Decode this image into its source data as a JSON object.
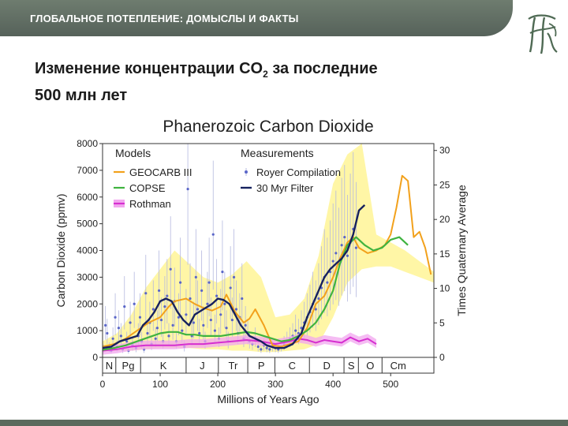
{
  "header": {
    "title": "ГЛОБАЛЬНОЕ ПОТЕПЛЕНИЕ: ДОМЫСЛЫ И ФАКТЫ"
  },
  "logo": {
    "name": "logo-icon"
  },
  "slide": {
    "title_line1_pre": "Изменение концентрации CO",
    "title_sub": "2",
    "title_line1_post": " за последние",
    "title_line2": "500 млн лет"
  },
  "colors": {
    "header": "#5f6c61",
    "geocarb": "#f2a11c",
    "copse": "#3fb33f",
    "rothman": "#d62fd0",
    "rothman_band": "#f2a6ef",
    "filter": "#16215e",
    "royer": "#5a66c8",
    "envelope": "#fff6a6"
  },
  "chart_data": {
    "type": "line",
    "title": "Phanerozoic Carbon Dioxide",
    "xlabel": "Millions of Years Ago",
    "ylabel": "Carbon Dioxide (ppmv)",
    "y2label": "Times Quaternary Average",
    "xlim": [
      0,
      575
    ],
    "ylim": [
      0,
      8000
    ],
    "y2lim": [
      0,
      31
    ],
    "x_ticks": [
      0,
      100,
      200,
      300,
      400,
      500
    ],
    "y_ticks": [
      0,
      1000,
      2000,
      3000,
      4000,
      5000,
      6000,
      7000,
      8000
    ],
    "y2_ticks": [
      0,
      5,
      10,
      15,
      20,
      25,
      30
    ],
    "grid": false,
    "legend_models_title": "Models",
    "legend_measurements_title": "Measurements",
    "periods": [
      {
        "label": "N",
        "start": 0,
        "end": 23
      },
      {
        "label": "Pg",
        "start": 23,
        "end": 66
      },
      {
        "label": "K",
        "start": 66,
        "end": 145
      },
      {
        "label": "J",
        "start": 145,
        "end": 201
      },
      {
        "label": "Tr",
        "start": 201,
        "end": 252
      },
      {
        "label": "P",
        "start": 252,
        "end": 299
      },
      {
        "label": "C",
        "start": 299,
        "end": 359
      },
      {
        "label": "D",
        "start": 359,
        "end": 419
      },
      {
        "label": "S",
        "start": 419,
        "end": 444
      },
      {
        "label": "O",
        "start": 444,
        "end": 485
      },
      {
        "label": "Cm",
        "start": 485,
        "end": 541
      }
    ],
    "envelope": {
      "x": [
        0,
        25,
        50,
        75,
        100,
        125,
        150,
        175,
        200,
        225,
        250,
        275,
        300,
        325,
        350,
        375,
        400,
        425,
        450,
        475,
        500,
        525,
        550,
        575
      ],
      "upper": [
        600,
        900,
        1600,
        2600,
        3300,
        4000,
        3500,
        3000,
        2800,
        3100,
        3600,
        3000,
        1500,
        1600,
        2200,
        3800,
        6500,
        7600,
        8000,
        4600,
        4300,
        4000,
        3600,
        3200
      ],
      "lower": [
        200,
        250,
        250,
        300,
        350,
        350,
        350,
        300,
        300,
        250,
        250,
        200,
        200,
        250,
        300,
        500,
        1500,
        2800,
        3300,
        3400,
        3400,
        3200,
        3000,
        2800
      ]
    },
    "series": [
      {
        "name": "GEOCARB III",
        "kind": "model",
        "x": [
          0,
          20,
          40,
          60,
          80,
          100,
          115,
          125,
          135,
          145,
          160,
          175,
          190,
          205,
          215,
          230,
          245,
          255,
          265,
          280,
          295,
          310,
          325,
          340,
          355,
          370,
          385,
          400,
          412,
          425,
          435,
          445,
          460,
          475,
          490,
          500,
          510,
          520,
          530,
          540,
          550,
          560,
          570
        ],
        "values": [
          400,
          500,
          700,
          1000,
          1300,
          1500,
          1900,
          2100,
          2150,
          2200,
          2000,
          1850,
          1750,
          1900,
          2350,
          1700,
          1300,
          1450,
          1800,
          1200,
          450,
          400,
          500,
          600,
          1100,
          2000,
          2300,
          3000,
          3700,
          4300,
          4500,
          4100,
          3900,
          4000,
          4200,
          4600,
          5600,
          6800,
          6600,
          4500,
          4700,
          4100,
          3100
        ]
      },
      {
        "name": "COPSE",
        "kind": "model",
        "x": [
          0,
          20,
          40,
          60,
          80,
          100,
          115,
          130,
          145,
          160,
          175,
          190,
          205,
          220,
          235,
          250,
          265,
          280,
          295,
          310,
          325,
          340,
          355,
          370,
          385,
          400,
          412,
          425,
          440,
          455,
          470,
          485,
          500,
          515,
          530
        ],
        "values": [
          280,
          350,
          450,
          600,
          750,
          900,
          950,
          950,
          850,
          850,
          800,
          800,
          800,
          850,
          900,
          950,
          900,
          800,
          700,
          600,
          650,
          800,
          1000,
          1300,
          1800,
          2500,
          3500,
          4200,
          4500,
          4200,
          4000,
          4100,
          4400,
          4500,
          4200
        ]
      },
      {
        "name": "Rothman",
        "kind": "model",
        "x": [
          0,
          25,
          50,
          75,
          100,
          125,
          150,
          175,
          200,
          225,
          250,
          275,
          300,
          325,
          340,
          355,
          370,
          385,
          400,
          415,
          430,
          445,
          460,
          475
        ],
        "values": [
          250,
          300,
          400,
          450,
          450,
          450,
          500,
          500,
          550,
          600,
          650,
          600,
          500,
          600,
          700,
          650,
          550,
          650,
          600,
          550,
          750,
          600,
          700,
          500
        ]
      },
      {
        "name": "30 Myr Filter",
        "kind": "measurement",
        "x": [
          0,
          15,
          30,
          45,
          60,
          70,
          80,
          90,
          100,
          110,
          120,
          130,
          140,
          150,
          160,
          175,
          190,
          200,
          210,
          220,
          230,
          240,
          255,
          265,
          275,
          285,
          300,
          315,
          330,
          345,
          355,
          365,
          375,
          385,
          395,
          405,
          415,
          425,
          435,
          445,
          455
        ],
        "values": [
          350,
          400,
          600,
          700,
          800,
          1200,
          1400,
          1700,
          2100,
          2200,
          2100,
          1700,
          1400,
          1200,
          1600,
          1800,
          2000,
          2200,
          2150,
          2000,
          1600,
          1200,
          800,
          700,
          600,
          450,
          350,
          350,
          500,
          900,
          1500,
          2000,
          2500,
          3000,
          3300,
          3500,
          3700,
          4000,
          4600,
          5500,
          5700
        ]
      }
    ],
    "royer_points": {
      "name": "Royer Compilation",
      "x": [
        2,
        5,
        8,
        12,
        15,
        18,
        22,
        25,
        28,
        32,
        35,
        38,
        42,
        45,
        48,
        52,
        55,
        58,
        62,
        65,
        68,
        72,
        75,
        78,
        82,
        85,
        88,
        92,
        95,
        98,
        102,
        105,
        108,
        112,
        115,
        118,
        122,
        125,
        128,
        132,
        135,
        138,
        142,
        145,
        148,
        152,
        155,
        158,
        162,
        165,
        168,
        172,
        175,
        178,
        182,
        185,
        188,
        192,
        195,
        198,
        202,
        205,
        208,
        212,
        215,
        218,
        222,
        225,
        228,
        232,
        235,
        238,
        242,
        245,
        248,
        252,
        255,
        260,
        265,
        270,
        275,
        280,
        285,
        290,
        295,
        300,
        305,
        310,
        315,
        320,
        325,
        330,
        335,
        340,
        345,
        350,
        355,
        360,
        365,
        370,
        375,
        380,
        385,
        390,
        395,
        400,
        405,
        410,
        415,
        420,
        425,
        430,
        435,
        440
      ],
      "y": [
        300,
        1200,
        900,
        350,
        250,
        700,
        1500,
        400,
        1100,
        800,
        300,
        1900,
        600,
        250,
        1300,
        450,
        2000,
        350,
        800,
        1500,
        600,
        300,
        2400,
        900,
        1300,
        500,
        1800,
        700,
        1100,
        2500,
        1400,
        600,
        1900,
        2300,
        800,
        3300,
        1200,
        2100,
        600,
        1500,
        2800,
        1000,
        400,
        1600,
        6300,
        2200,
        800,
        1300,
        3000,
        1800,
        900,
        2500,
        1200,
        600,
        2000,
        2800,
        1400,
        4600,
        1000,
        2300,
        700,
        1600,
        3200,
        2000,
        1100,
        600,
        2600,
        1400,
        3000,
        1800,
        900,
        1500,
        2200,
        700,
        1200,
        900,
        600,
        500,
        700,
        400,
        300,
        450,
        350,
        300,
        400,
        350,
        300,
        400,
        500,
        600,
        700,
        800,
        1000,
        900,
        1100,
        1300,
        1500,
        1700,
        2000,
        1800,
        2200,
        2600,
        3000,
        2800,
        3200,
        3600,
        3900,
        3500,
        4200,
        4500,
        3800,
        4300,
        4800,
        4100
      ]
    }
  }
}
